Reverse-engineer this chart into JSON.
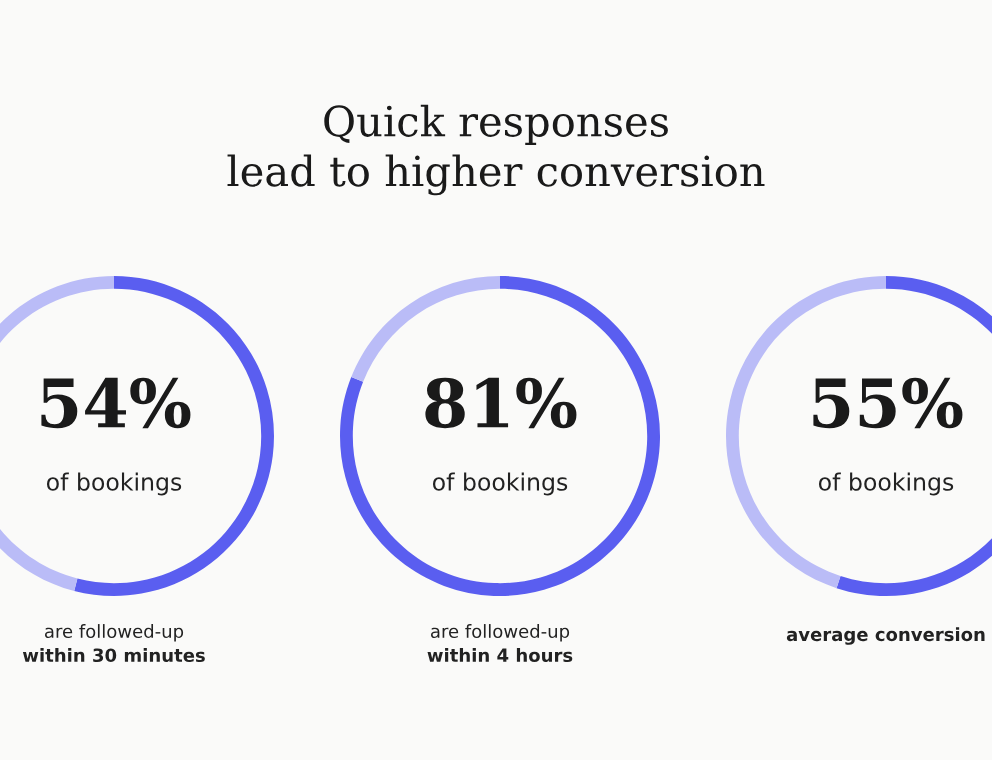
{
  "chart_data": [
    {
      "type": "other",
      "title": "Quick responses\nlead to higher conversion"
    },
    {
      "type": "donut",
      "categories": [
        null,
        null
      ],
      "values": [
        54,
        46
      ],
      "colors": [
        "#5a5ef0",
        "#babcf7"
      ],
      "value_labels": [
        "54%",
        null
      ],
      "annotations": [
        "of bookings",
        "are followed-up",
        "within 30 minutes"
      ]
    },
    {
      "type": "donut",
      "categories": [
        null,
        null
      ],
      "values": [
        81,
        19
      ],
      "colors": [
        "#5a5ef0",
        "#babcf7"
      ],
      "value_labels": [
        "81%",
        null
      ],
      "annotations": [
        "of bookings",
        "are followed-up",
        "within 4 hours"
      ]
    },
    {
      "type": "donut",
      "categories": [
        null,
        null
      ],
      "values": [
        55,
        45
      ],
      "colors": [
        "#5a5ef0",
        "#babcf7"
      ],
      "value_labels": [
        "55%",
        null
      ],
      "annotations": [
        "of bookings",
        "average conversion"
      ]
    }
  ]
}
